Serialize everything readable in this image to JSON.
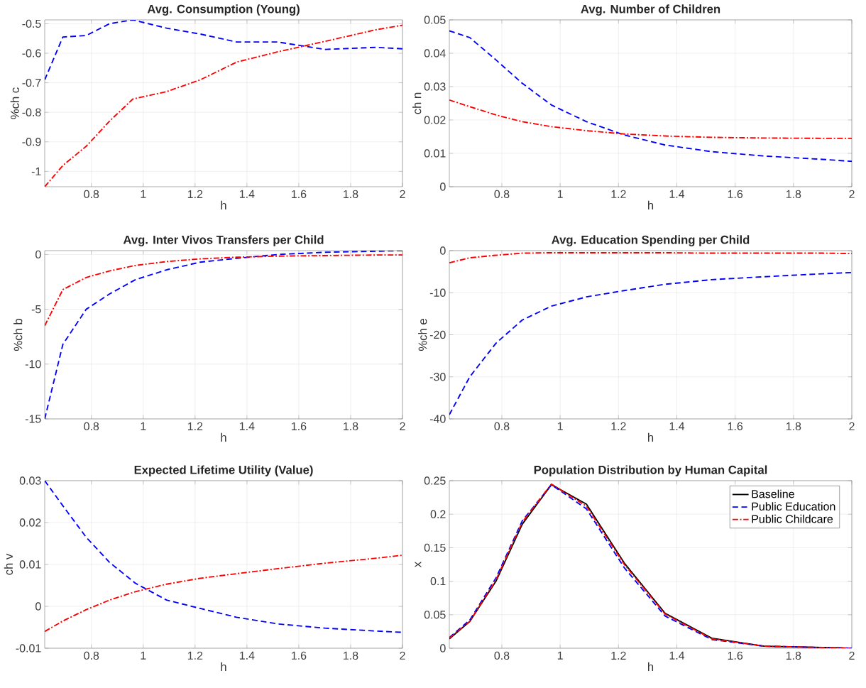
{
  "chart_data": [
    {
      "type": "line",
      "title": "Avg. Consumption (Young)",
      "xlabel": "h",
      "ylabel": "%ch c",
      "x": [
        0.62,
        0.69,
        0.78,
        0.87,
        0.96,
        1.09,
        1.22,
        1.36,
        1.52,
        1.7,
        1.9,
        2.0
      ],
      "xlim": [
        0.62,
        2
      ],
      "ylim": [
        -1.052,
        -0.487
      ],
      "xticks": [
        0.8,
        1,
        1.2,
        1.4,
        1.6,
        1.8,
        2
      ],
      "yticks": [
        -1,
        -0.9,
        -0.8,
        -0.7,
        -0.6,
        -0.5
      ],
      "grid": true,
      "legend": false,
      "series": [
        {
          "color": "#0000ff",
          "line_style": "dashed",
          "values": [
            -0.69,
            -0.545,
            -0.54,
            -0.5,
            -0.487,
            -0.515,
            -0.535,
            -0.562,
            -0.562,
            -0.587,
            -0.58,
            -0.585
          ]
        },
        {
          "color": "#ff0000",
          "line_style": "dashdot",
          "values": [
            -1.052,
            -0.98,
            -0.915,
            -0.83,
            -0.755,
            -0.73,
            -0.69,
            -0.63,
            -0.595,
            -0.56,
            -0.52,
            -0.505
          ]
        }
      ]
    },
    {
      "type": "line",
      "title": "Avg. Number of Children",
      "xlabel": "h",
      "ylabel": "ch n",
      "x": [
        0.62,
        0.69,
        0.78,
        0.87,
        0.97,
        1.09,
        1.22,
        1.36,
        1.52,
        1.7,
        1.9,
        2.0
      ],
      "xlim": [
        0.62,
        2
      ],
      "ylim": [
        0,
        0.05
      ],
      "xticks": [
        0.8,
        1,
        1.2,
        1.4,
        1.6,
        1.8,
        2
      ],
      "yticks": [
        0,
        0.01,
        0.02,
        0.03,
        0.04,
        0.05
      ],
      "grid": true,
      "legend": false,
      "series": [
        {
          "color": "#0000ff",
          "line_style": "dashed",
          "values": [
            0.0467,
            0.0447,
            0.038,
            0.031,
            0.0245,
            0.0195,
            0.0155,
            0.0125,
            0.0105,
            0.0092,
            0.0082,
            0.0076
          ]
        },
        {
          "color": "#ff0000",
          "line_style": "dashdot",
          "values": [
            0.026,
            0.024,
            0.0215,
            0.0195,
            0.018,
            0.0168,
            0.0158,
            0.0152,
            0.0148,
            0.0146,
            0.0145,
            0.0145
          ]
        }
      ]
    },
    {
      "type": "line",
      "title": "Avg. Inter Vivos Transfers per Child",
      "xlabel": "h",
      "ylabel": "%ch b",
      "x": [
        0.62,
        0.69,
        0.78,
        0.87,
        0.97,
        1.09,
        1.22,
        1.36,
        1.52,
        1.7,
        1.9,
        2.0
      ],
      "xlim": [
        0.62,
        2
      ],
      "ylim": [
        -15,
        0.35
      ],
      "xticks": [
        0.8,
        1,
        1.2,
        1.4,
        1.6,
        1.8,
        2
      ],
      "yticks": [
        -15,
        -10,
        -5,
        0
      ],
      "grid": true,
      "legend": false,
      "series": [
        {
          "color": "#0000ff",
          "line_style": "dashed",
          "values": [
            -15,
            -8.2,
            -5,
            -3.6,
            -2.3,
            -1.4,
            -0.7,
            -0.35,
            0,
            0.2,
            0.3,
            0.35
          ]
        },
        {
          "color": "#ff0000",
          "line_style": "dashdot",
          "values": [
            -6.5,
            -3.2,
            -2.1,
            -1.5,
            -1,
            -0.65,
            -0.4,
            -0.25,
            -0.15,
            -0.1,
            -0.05,
            -0.05
          ]
        }
      ]
    },
    {
      "type": "line",
      "title": "Avg. Education Spending per Child",
      "xlabel": "h",
      "ylabel": "%ch e",
      "x": [
        0.62,
        0.69,
        0.78,
        0.87,
        0.97,
        1.09,
        1.22,
        1.36,
        1.52,
        1.7,
        1.9,
        2.0
      ],
      "xlim": [
        0.62,
        2
      ],
      "ylim": [
        -40,
        0
      ],
      "xticks": [
        0.8,
        1,
        1.2,
        1.4,
        1.6,
        1.8,
        2
      ],
      "yticks": [
        -40,
        -30,
        -20,
        -10,
        0
      ],
      "grid": true,
      "legend": false,
      "series": [
        {
          "color": "#0000ff",
          "line_style": "dashed",
          "values": [
            -39,
            -30,
            -22,
            -16.5,
            -13.2,
            -11,
            -9.5,
            -8,
            -6.9,
            -6.2,
            -5.5,
            -5.2
          ]
        },
        {
          "color": "#ff0000",
          "line_style": "dashdot",
          "values": [
            -2.9,
            -1.7,
            -1.1,
            -0.6,
            -0.5,
            -0.5,
            -0.5,
            -0.5,
            -0.6,
            -0.6,
            -0.6,
            -0.7
          ]
        }
      ]
    },
    {
      "type": "line",
      "title": "Expected Lifetime Utility (Value)",
      "xlabel": "h",
      "ylabel": "ch v",
      "x": [
        0.62,
        0.69,
        0.78,
        0.87,
        0.97,
        1.09,
        1.22,
        1.36,
        1.52,
        1.7,
        1.9,
        2.0
      ],
      "xlim": [
        0.62,
        2
      ],
      "ylim": [
        -0.01,
        0.03
      ],
      "xticks": [
        0.8,
        1,
        1.2,
        1.4,
        1.6,
        1.8,
        2
      ],
      "yticks": [
        -0.01,
        0,
        0.01,
        0.02,
        0.03
      ],
      "grid": true,
      "legend": false,
      "series": [
        {
          "color": "#0000ff",
          "line_style": "dashed",
          "values": [
            0.03,
            0.024,
            0.0165,
            0.0105,
            0.0055,
            0.0015,
            -0.0005,
            -0.0026,
            -0.0042,
            -0.0052,
            -0.0059,
            -0.0062
          ]
        },
        {
          "color": "#ff0000",
          "line_style": "dashdot",
          "values": [
            -0.006,
            -0.0035,
            -0.0008,
            0.0015,
            0.0035,
            0.0053,
            0.0067,
            0.0078,
            0.009,
            0.0103,
            0.0115,
            0.0122
          ]
        }
      ]
    },
    {
      "type": "line",
      "title": "Population Distribution by Human Capital",
      "xlabel": "h",
      "ylabel": "x",
      "x": [
        0.62,
        0.69,
        0.78,
        0.87,
        0.97,
        1.09,
        1.22,
        1.36,
        1.52,
        1.7,
        1.9,
        2.0
      ],
      "xlim": [
        0.62,
        2
      ],
      "ylim": [
        0,
        0.25
      ],
      "xticks": [
        0.8,
        1,
        1.2,
        1.4,
        1.6,
        1.8,
        2
      ],
      "yticks": [
        0,
        0.05,
        0.1,
        0.15,
        0.2,
        0.25
      ],
      "grid": true,
      "legend": "top right",
      "series": [
        {
          "name": "Baseline",
          "color": "#000000",
          "line_style": "solid",
          "values": [
            0.014,
            0.04,
            0.1,
            0.185,
            0.244,
            0.215,
            0.127,
            0.052,
            0.015,
            0.003,
            0.001,
            0
          ]
        },
        {
          "name": "Public Education",
          "color": "#0000ff",
          "line_style": "dashed",
          "values": [
            0.016,
            0.042,
            0.105,
            0.19,
            0.244,
            0.208,
            0.12,
            0.048,
            0.013,
            0.003,
            0.001,
            0
          ]
        },
        {
          "name": "Public Childcare",
          "color": "#ff0000",
          "line_style": "dashdot",
          "values": [
            0.015,
            0.04,
            0.102,
            0.188,
            0.245,
            0.212,
            0.125,
            0.051,
            0.014,
            0.003,
            0.001,
            0
          ]
        }
      ]
    }
  ]
}
